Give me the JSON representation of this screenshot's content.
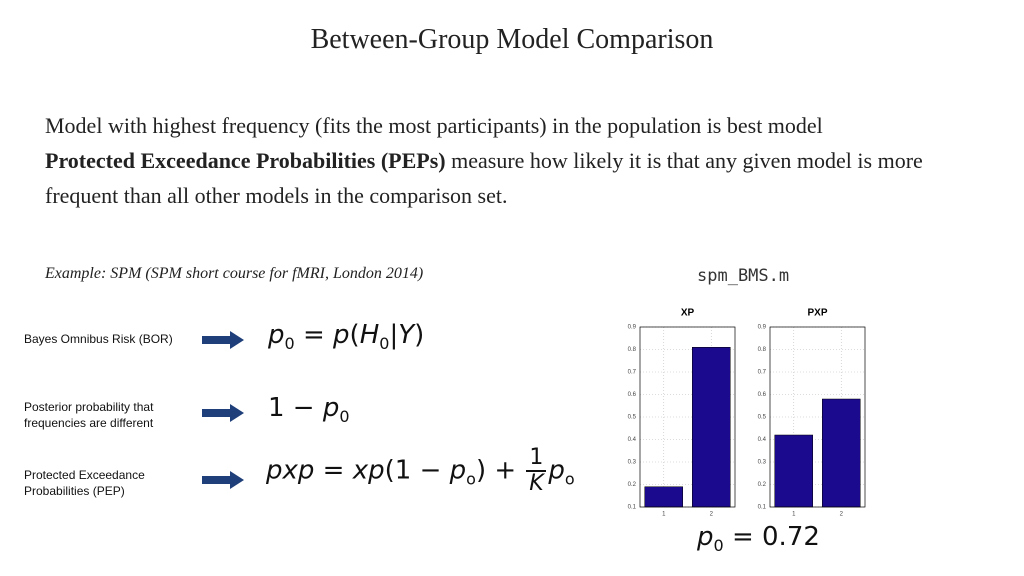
{
  "header": {
    "title": "Between-Group Model Comparison"
  },
  "body": {
    "paragraph1": "Model with highest frequency (fits the most participants) in the population is best model",
    "pep_term": "Protected Exceedance Probabilities (PEPs)",
    "pep_rest": " measure how likely it is that any given model is more frequent than all other models in the comparison set.",
    "example": "Example: SPM (SPM short course for fMRI, London 2014)"
  },
  "rows": [
    {
      "label": "Bayes Omnibus Risk (BOR)",
      "formula": [
        "p",
        "0",
        " = ",
        "p",
        "(",
        "H",
        "0",
        "|",
        "Y",
        ")"
      ]
    },
    {
      "label": "Posterior probability that frequencies are different",
      "formula": [
        "1 − ",
        "p",
        "0"
      ]
    },
    {
      "label": "Protected Exceedance Probabilities (PEP)",
      "formula": [
        "pxp",
        " = ",
        "xp",
        "(1 − ",
        "p",
        "o",
        ") + ",
        "1",
        "K",
        "p",
        "o"
      ]
    }
  ],
  "figure": {
    "caption": "spm_BMS.m",
    "result": [
      "p",
      "0",
      " = 0.72"
    ]
  },
  "chart_data": [
    {
      "type": "bar",
      "title": "XP",
      "categories": [
        "1",
        "2"
      ],
      "values": [
        0.19,
        0.81
      ],
      "color": "#1c0a8e",
      "ylim": [
        0.1,
        0.9
      ],
      "yticks": [
        0.1,
        0.2,
        0.3,
        0.4,
        0.5,
        0.6,
        0.7,
        0.8,
        0.9
      ],
      "grid": true
    },
    {
      "type": "bar",
      "title": "PXP",
      "categories": [
        "1",
        "2"
      ],
      "values": [
        0.42,
        0.58
      ],
      "color": "#1c0a8e",
      "ylim": [
        0.1,
        0.9
      ],
      "yticks": [
        0.1,
        0.2,
        0.3,
        0.4,
        0.5,
        0.6,
        0.7,
        0.8,
        0.9
      ],
      "grid": true
    }
  ]
}
